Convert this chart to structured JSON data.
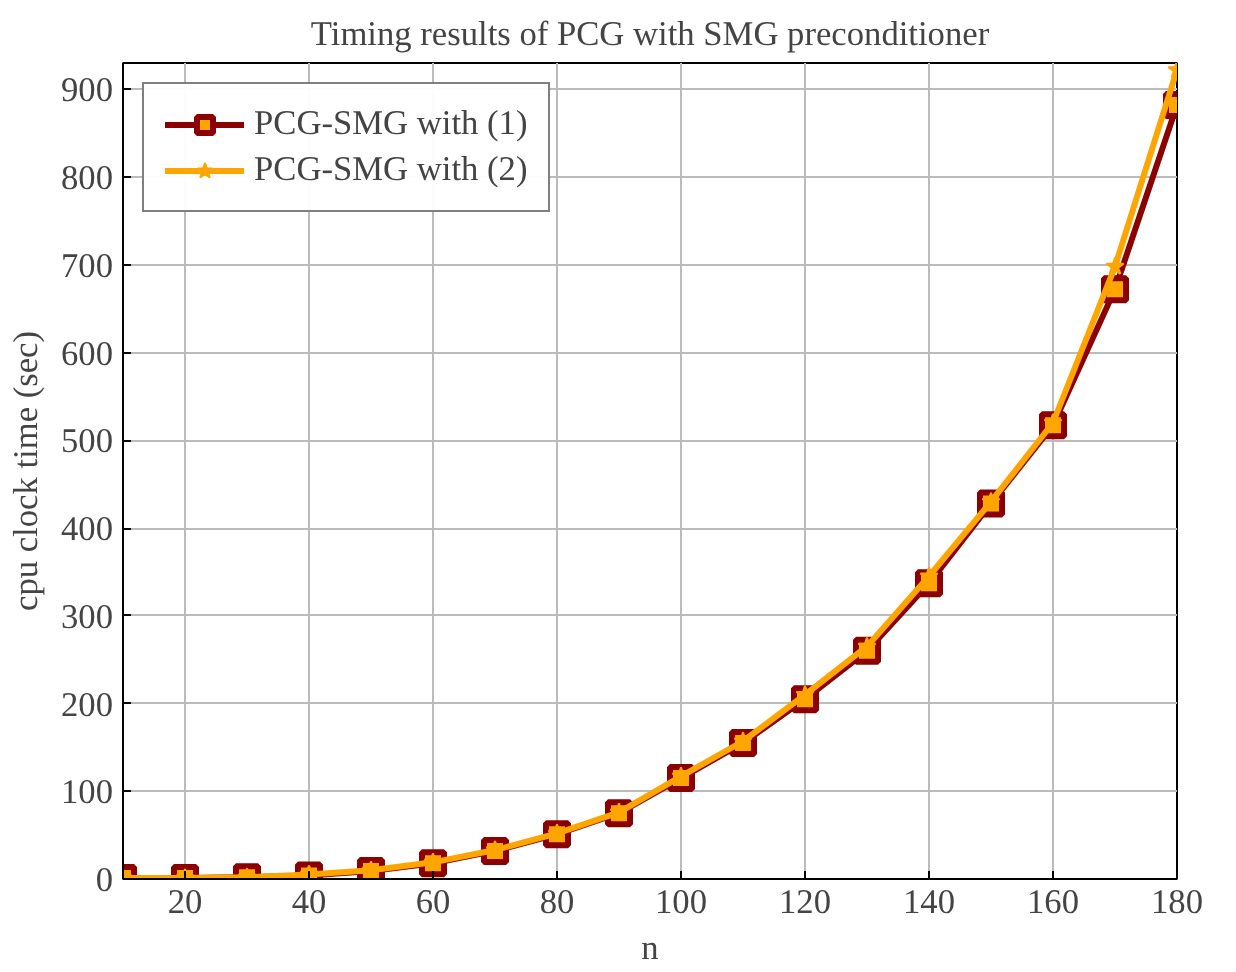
{
  "chart_data": {
    "type": "line",
    "title": "Timing results of PCG with SMG preconditioner",
    "xlabel": "n",
    "ylabel": "cpu clock time (sec)",
    "x": [
      10,
      20,
      30,
      40,
      50,
      60,
      70,
      80,
      90,
      100,
      110,
      120,
      130,
      140,
      150,
      160,
      170,
      180
    ],
    "series": [
      {
        "name": "PCG-SMG with (1)",
        "color": "#8b0000",
        "marker": "square",
        "values": [
          1,
          1,
          2,
          4,
          9,
          18,
          32,
          51,
          75,
          115,
          155,
          205,
          260,
          337,
          428,
          517,
          672,
          882
        ]
      },
      {
        "name": "PCG-SMG with (2)",
        "color": "#ffa500",
        "marker": "star",
        "values": [
          1,
          1,
          2,
          5,
          10,
          19,
          33,
          52,
          76,
          117,
          157,
          210,
          265,
          345,
          430,
          520,
          698,
          922
        ]
      }
    ],
    "xlim": [
      10,
      180
    ],
    "ylim": [
      0,
      930
    ],
    "xticks": [
      20,
      40,
      60,
      80,
      100,
      120,
      140,
      160,
      180
    ],
    "yticks": [
      0,
      100,
      200,
      300,
      400,
      500,
      600,
      700,
      800,
      900
    ],
    "grid": true,
    "legend": "top left",
    "line_style": "solid"
  }
}
